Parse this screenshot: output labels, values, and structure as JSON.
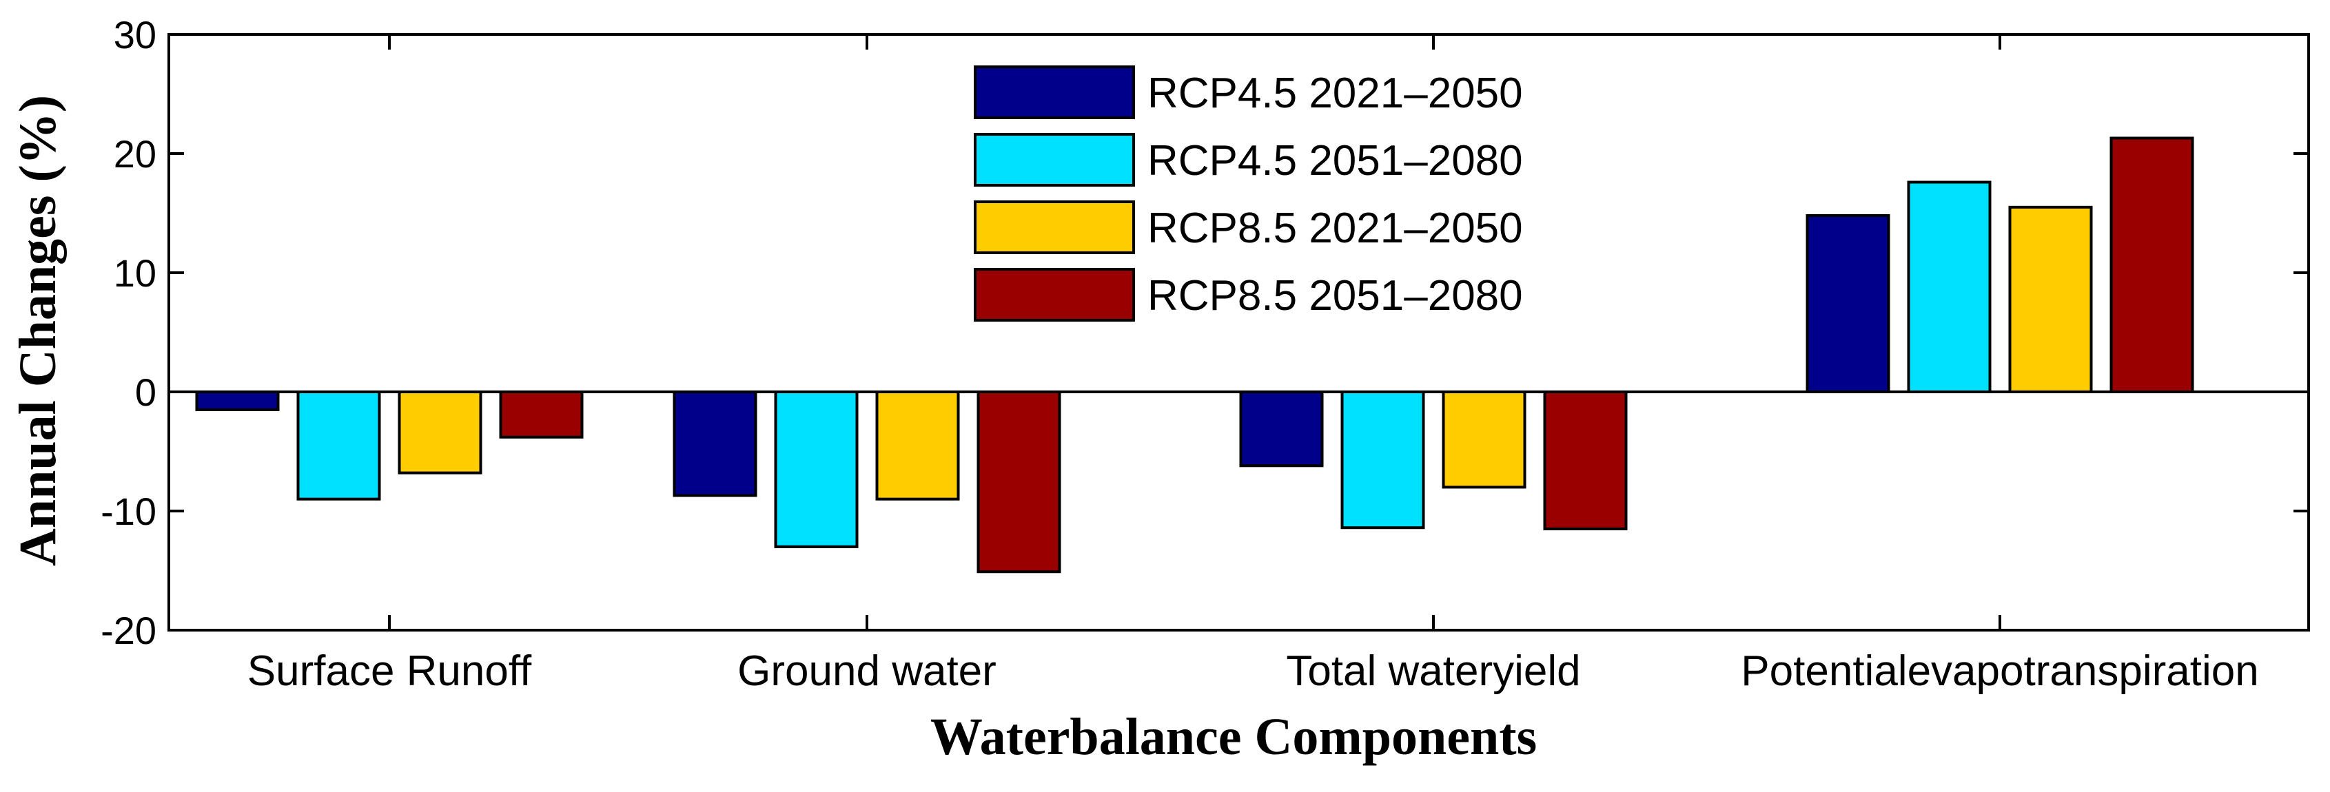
{
  "chart_data": {
    "type": "bar",
    "title": "",
    "xlabel": "Waterbalance Components",
    "ylabel": "Annual Changes (%)",
    "ylim": [
      -20,
      30
    ],
    "yticks": [
      "30",
      "20",
      "10",
      "0",
      "-10",
      "-20"
    ],
    "categories": [
      "Surface Runoff",
      "Ground water",
      "Total wateryield",
      "Potentialevapotranspiration"
    ],
    "series": [
      {
        "name": "RCP4.5 2021–2050",
        "color": "#00008B",
        "values": [
          -1.5,
          -8.7,
          -6.2,
          14.8
        ]
      },
      {
        "name": "RCP4.5 2051–2080",
        "color": "#00E0FF",
        "values": [
          -9.0,
          -13.0,
          -11.4,
          17.6
        ]
      },
      {
        "name": "RCP8.5 2021–2050",
        "color": "#FFCC00",
        "values": [
          -6.8,
          -9.0,
          -8.0,
          15.5
        ]
      },
      {
        "name": "RCP8.5 2051–2080",
        "color": "#990000",
        "values": [
          -3.8,
          -15.1,
          -11.5,
          21.3
        ]
      }
    ],
    "legend_position": "top-center",
    "grid": false
  }
}
